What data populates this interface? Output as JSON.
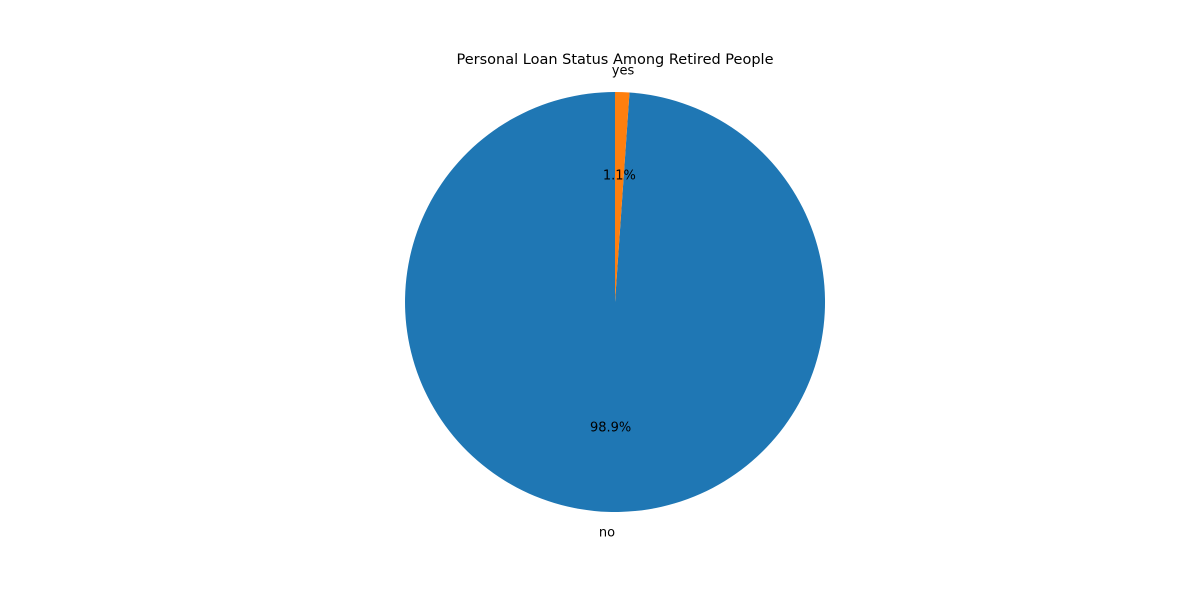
{
  "chart_data": {
    "type": "pie",
    "title": "Personal Loan Status Among Retired People",
    "start_angle_deg": 90,
    "direction": "counterclockwise",
    "slices": [
      {
        "label": "no",
        "value": 98.9,
        "pct_label": "98.9%",
        "color": "#1f77b4"
      },
      {
        "label": "yes",
        "value": 1.1,
        "pct_label": "1.1%",
        "color": "#ff7f0e"
      }
    ]
  }
}
